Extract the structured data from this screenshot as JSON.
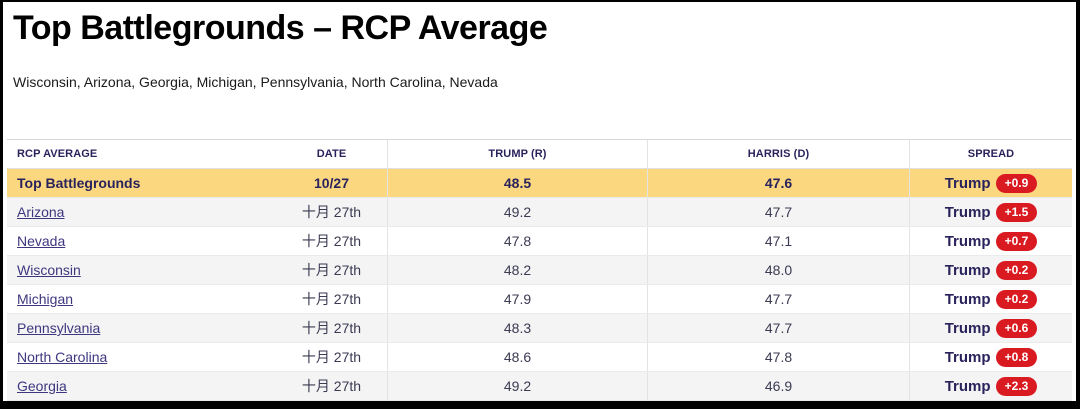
{
  "page": {
    "title": "Top Battlegrounds – RCP Average",
    "subtitle": "Wisconsin, Arizona, Georgia, Michigan, Pennsylvania, North Carolina, Nevada"
  },
  "colors": {
    "highlight_row": "#FBD77F",
    "header_text": "#29235C",
    "spread_badge": "#DA1A21",
    "badge_text": "#FFFFFF",
    "link": "#3D3780",
    "zebra_row": "#F4F4F4"
  },
  "table": {
    "columns": [
      "RCP AVERAGE",
      "DATE",
      "TRUMP (R)",
      "HARRIS (D)",
      "SPREAD"
    ],
    "rows": [
      {
        "label": "Top Battlegrounds",
        "date": "10/27",
        "trump": "48.5",
        "harris": "47.6",
        "spread_winner": "Trump",
        "spread_margin": "+0.9",
        "highlighted": true,
        "is_link": false
      },
      {
        "label": "Arizona",
        "date": "十月 27th",
        "trump": "49.2",
        "harris": "47.7",
        "spread_winner": "Trump",
        "spread_margin": "+1.5",
        "highlighted": false,
        "is_link": true
      },
      {
        "label": "Nevada",
        "date": "十月 27th",
        "trump": "47.8",
        "harris": "47.1",
        "spread_winner": "Trump",
        "spread_margin": "+0.7",
        "highlighted": false,
        "is_link": true
      },
      {
        "label": "Wisconsin",
        "date": "十月 27th",
        "trump": "48.2",
        "harris": "48.0",
        "spread_winner": "Trump",
        "spread_margin": "+0.2",
        "highlighted": false,
        "is_link": true
      },
      {
        "label": "Michigan",
        "date": "十月 27th",
        "trump": "47.9",
        "harris": "47.7",
        "spread_winner": "Trump",
        "spread_margin": "+0.2",
        "highlighted": false,
        "is_link": true
      },
      {
        "label": "Pennsylvania",
        "date": "十月 27th",
        "trump": "48.3",
        "harris": "47.7",
        "spread_winner": "Trump",
        "spread_margin": "+0.6",
        "highlighted": false,
        "is_link": true
      },
      {
        "label": "North Carolina",
        "date": "十月 27th",
        "trump": "48.6",
        "harris": "47.8",
        "spread_winner": "Trump",
        "spread_margin": "+0.8",
        "highlighted": false,
        "is_link": true
      },
      {
        "label": "Georgia",
        "date": "十月 27th",
        "trump": "49.2",
        "harris": "46.9",
        "spread_winner": "Trump",
        "spread_margin": "+2.3",
        "highlighted": false,
        "is_link": true
      }
    ]
  }
}
